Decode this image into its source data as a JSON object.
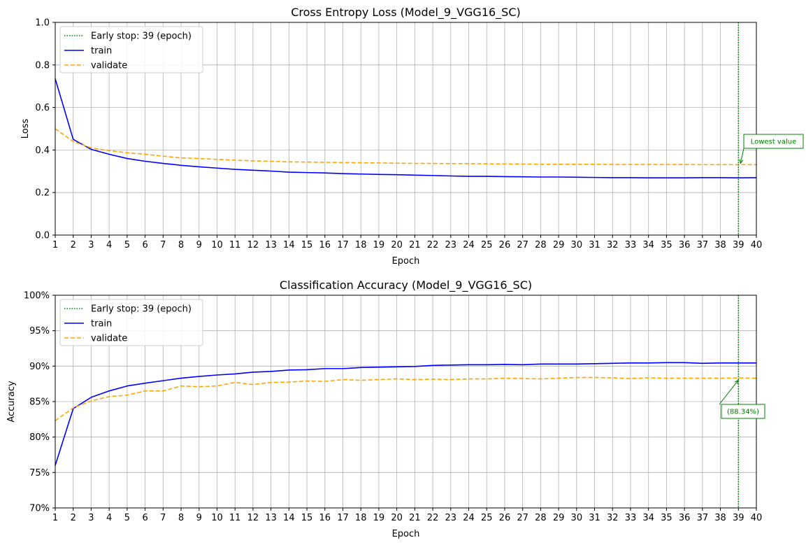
{
  "chart_data": [
    {
      "type": "line",
      "title": "Cross Entropy Loss (Model_9_VGG16_SC)",
      "xlabel": "Epoch",
      "ylabel": "Loss",
      "xlim": [
        1,
        40
      ],
      "ylim": [
        0,
        1
      ],
      "x_ticks": [
        1,
        2,
        3,
        4,
        5,
        6,
        7,
        8,
        9,
        10,
        11,
        12,
        13,
        14,
        15,
        16,
        17,
        18,
        19,
        20,
        21,
        22,
        23,
        24,
        25,
        26,
        27,
        28,
        29,
        30,
        31,
        32,
        33,
        34,
        35,
        36,
        37,
        38,
        39,
        40
      ],
      "y_ticks": [
        0,
        0.2,
        0.4,
        0.6,
        0.8,
        1.0
      ],
      "y_tick_labels": [
        "0.0",
        "0.2",
        "0.4",
        "0.6",
        "0.8",
        "1.0"
      ],
      "grid": true,
      "legend_position": "top-left",
      "early_stop": {
        "epoch": 39,
        "label": "Early stop: 39 (epoch)",
        "color": "#008000"
      },
      "annotation": {
        "text": "Lowest value",
        "x": 39,
        "y": 0.33,
        "color": "#008000"
      },
      "series": [
        {
          "name": "train",
          "color": "#0000ff",
          "style": "solid",
          "values": [
            0.735,
            0.45,
            0.403,
            0.38,
            0.36,
            0.347,
            0.337,
            0.328,
            0.321,
            0.315,
            0.309,
            0.305,
            0.301,
            0.296,
            0.294,
            0.292,
            0.289,
            0.287,
            0.285,
            0.284,
            0.282,
            0.28,
            0.278,
            0.276,
            0.276,
            0.275,
            0.274,
            0.273,
            0.273,
            0.272,
            0.271,
            0.27,
            0.27,
            0.269,
            0.269,
            0.269,
            0.27,
            0.27,
            0.269,
            0.27
          ]
        },
        {
          "name": "validate",
          "color": "#ffa500",
          "style": "dashed",
          "values": [
            0.5,
            0.44,
            0.41,
            0.397,
            0.387,
            0.38,
            0.371,
            0.363,
            0.36,
            0.356,
            0.352,
            0.349,
            0.347,
            0.344,
            0.343,
            0.342,
            0.341,
            0.34,
            0.339,
            0.338,
            0.337,
            0.337,
            0.336,
            0.336,
            0.335,
            0.334,
            0.334,
            0.333,
            0.333,
            0.333,
            0.333,
            0.332,
            0.332,
            0.332,
            0.332,
            0.332,
            0.331,
            0.331,
            0.331,
            0.331
          ]
        }
      ]
    },
    {
      "type": "line",
      "title": "Classification Accuracy (Model_9_VGG16_SC)",
      "xlabel": "Epoch",
      "ylabel": "Accuracy",
      "xlim": [
        1,
        40
      ],
      "ylim": [
        70,
        100
      ],
      "x_ticks": [
        1,
        2,
        3,
        4,
        5,
        6,
        7,
        8,
        9,
        10,
        11,
        12,
        13,
        14,
        15,
        16,
        17,
        18,
        19,
        20,
        21,
        22,
        23,
        24,
        25,
        26,
        27,
        28,
        29,
        30,
        31,
        32,
        33,
        34,
        35,
        36,
        37,
        38,
        39,
        40
      ],
      "y_ticks": [
        70,
        75,
        80,
        85,
        90,
        95,
        100
      ],
      "y_tick_labels": [
        "70%",
        "75%",
        "80%",
        "85%",
        "90%",
        "95%",
        "100%"
      ],
      "grid": true,
      "legend_position": "top-left",
      "early_stop": {
        "epoch": 39,
        "label": "Early stop: 39 (epoch)",
        "color": "#008000"
      },
      "annotation": {
        "text": "(88.34%)",
        "x": 39,
        "y": 88.34,
        "color": "#008000"
      },
      "series": [
        {
          "name": "train",
          "color": "#0000ff",
          "style": "solid",
          "values": [
            76.0,
            84.0,
            85.6,
            86.5,
            87.2,
            87.6,
            87.95,
            88.3,
            88.55,
            88.75,
            88.9,
            89.15,
            89.25,
            89.45,
            89.5,
            89.65,
            89.65,
            89.8,
            89.85,
            89.9,
            89.95,
            90.1,
            90.15,
            90.2,
            90.2,
            90.25,
            90.2,
            90.3,
            90.3,
            90.3,
            90.35,
            90.4,
            90.45,
            90.45,
            90.5,
            90.5,
            90.4,
            90.45,
            90.45,
            90.45
          ]
        },
        {
          "name": "validate",
          "color": "#ffa500",
          "style": "dashed",
          "values": [
            82.3,
            84.1,
            85.1,
            85.7,
            85.9,
            86.5,
            86.5,
            87.2,
            87.1,
            87.2,
            87.7,
            87.4,
            87.7,
            87.75,
            87.9,
            87.85,
            88.1,
            88.0,
            88.1,
            88.2,
            88.1,
            88.15,
            88.1,
            88.2,
            88.2,
            88.3,
            88.25,
            88.2,
            88.3,
            88.4,
            88.4,
            88.35,
            88.25,
            88.35,
            88.3,
            88.3,
            88.3,
            88.3,
            88.34,
            88.3
          ]
        }
      ]
    }
  ]
}
